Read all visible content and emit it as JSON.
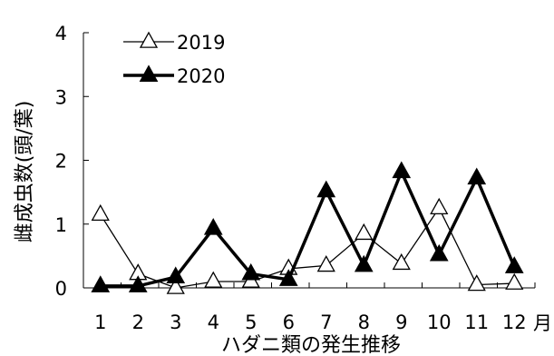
{
  "chart_data": {
    "type": "line",
    "title": "",
    "ylabel": "雌成虫数(頭/葉)",
    "xlabel": "ハダニ類の発生推移",
    "x_unit": "月",
    "categories": [
      "1",
      "2",
      "3",
      "4",
      "5",
      "6",
      "7",
      "8",
      "9",
      "10",
      "11",
      "12"
    ],
    "ylim": [
      0,
      4
    ],
    "yticks": [
      "0",
      "1",
      "2",
      "3",
      "4"
    ],
    "grid": false,
    "legend_position": "top-left",
    "series": [
      {
        "name": "2019",
        "marker": "open-triangle",
        "line": "thin",
        "color": "#000000",
        "values": [
          1.15,
          0.22,
          0.0,
          0.1,
          0.1,
          0.3,
          0.35,
          0.85,
          0.38,
          1.25,
          0.05,
          0.07
        ]
      },
      {
        "name": "2020",
        "marker": "filled-triangle",
        "line": "thick",
        "color": "#000000",
        "values": [
          0.03,
          0.03,
          0.17,
          0.93,
          0.22,
          0.13,
          1.52,
          0.35,
          1.82,
          0.52,
          1.72,
          0.33
        ]
      }
    ]
  }
}
